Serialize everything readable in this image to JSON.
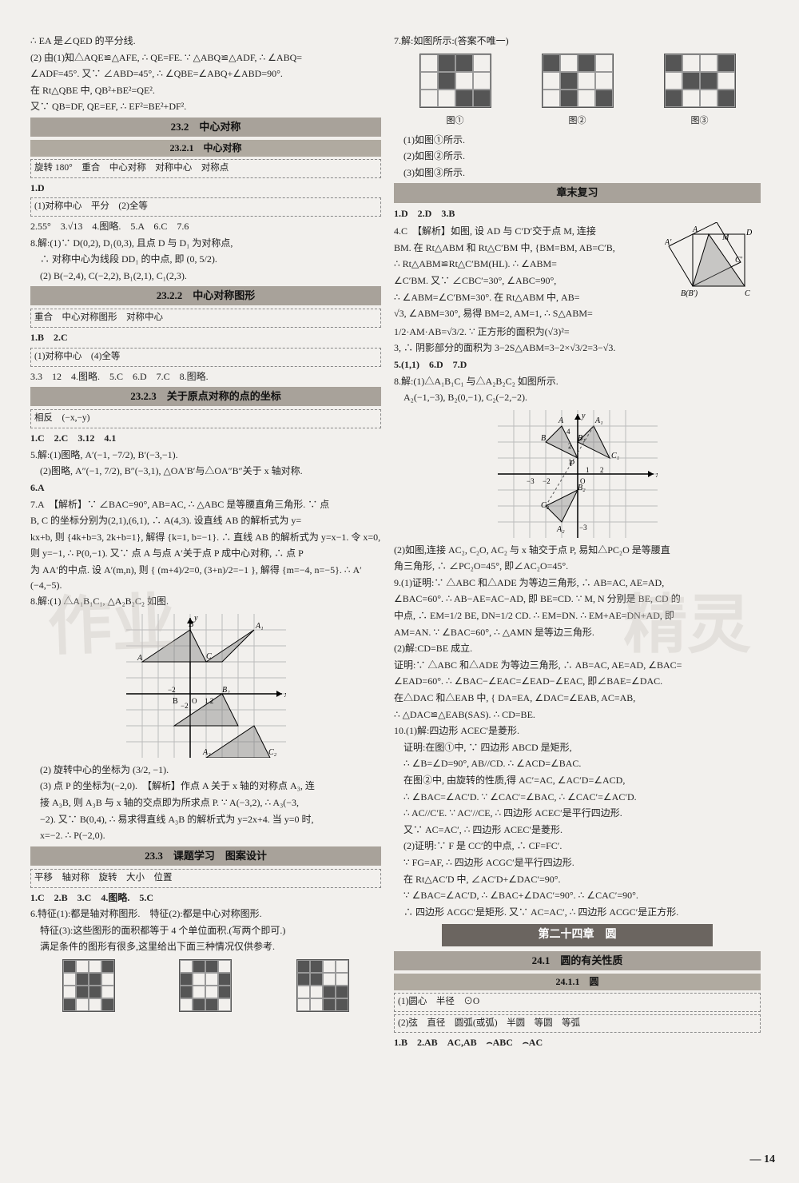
{
  "left": {
    "intro_lines": [
      "∴ EA 是∠QED 的平分线.",
      "(2) 由(1)知△AQE≌△AFE, ∴ QE=FE. ∵ △ABQ≌△ADF, ∴ ∠ABQ=",
      "∠ADF=45°. 又∵ ∠ABD=45°, ∴ ∠QBE=∠ABQ+∠ABD=90°.",
      "在 Rt△QBE 中, QB²+BE²=QE².",
      "又∵ QB=DF, QE=EF, ∴ EF²=BE²+DF²."
    ],
    "h_23_2": "23.2　中心对称",
    "h_23_2_1": "23.2.1　中心对称",
    "dashed_23_2_1": "旋转 180°　重合　中心对称　对称中心　对称点",
    "ans1": "1.D",
    "dashed_ans1": "(1)对称中心　平分　(2)全等",
    "line_2": "2.55°　3.√13　4.图略.　5.A　6.C　7.6",
    "line_8_1": "8.解:(1)∵ D(0,2), D₁(0,3), 且点 D 与 D₁ 为对称点,",
    "line_8_2": "∴ 对称中心为线段 DD₁ 的中点, 即 (0, 5/2).",
    "line_8_3": "(2) B(−2,4), C(−2,2), B₁(2,1), C₁(2,3).",
    "h_23_2_2": "23.2.2　中心对称图形",
    "dashed_23_2_2": "重合　中心对称图形　对称中心",
    "ans2": "1.B　2.C",
    "dashed_ans2": "(1)对称中心　(4)全等",
    "line_3": "3.3　12　4.图略.　5.C　6.D　7.C　8.图略.",
    "h_23_2_3": "23.2.3　关于原点对称的点的坐标",
    "dashed_23_2_3": "相反　(−x,−y)",
    "ans3": "1.C　2.C　3.12　4.1",
    "line_5_1": "5.解:(1)图略, A′(−1, −7/2), B′(−3,−1).",
    "line_5_2": "(2)图略, A″(−1, 7/2), B″(−3,1), △OA′B′与△OA″B″关于 x 轴对称.",
    "ans6": "6.A",
    "p7_lines": [
      "7.A　【解析】∵ ∠BAC=90°, AB=AC, ∴ △ABC 是等腰直角三角形. ∵ 点",
      "B, C 的坐标分别为(2,1),(6,1), ∴ A(4,3). 设直线 AB 的解析式为 y=",
      "kx+b, 则 {4k+b=3, 2k+b=1}, 解得 {k=1, b=−1}. ∴ 直线 AB 的解析式为 y=x−1. 令 x=0,",
      "则 y=−1, ∴ P(0,−1). 又∵ 点 A 与点 A′关于点 P 成中心对称, ∴ 点 P",
      "为 AA′的中点. 设 A′(m,n), 则 { (m+4)/2=0, (3+n)/2=−1 }, 解得 {m=−4, n=−5}. ∴ A′(−4,−5)."
    ],
    "p8_1": "8.解:(1) △A₁B₁C₁, △A₂B₂C₂ 如图.",
    "p8_2": "(2) 旋转中心的坐标为 (3/2, −1).",
    "p8_3_lines": [
      "(3) 点 P 的坐标为(−2,0).　【解析】作点 A 关于 x 轴的对称点 A₃, 连",
      "接 A₃B, 则 A₃B 与 x 轴的交点即为所求点 P. ∵ A(−3,2), ∴ A₃(−3,",
      "−2). 又∵ B(0,4), ∴ 易求得直线 A₃B 的解析式为 y=2x+4. 当 y=0 时,",
      "x=−2. ∴ P(−2,0)."
    ],
    "h_23_3": "23.3　课题学习　图案设计",
    "dashed_23_3": "平移　轴对称　旋转　大小　位置",
    "ans_23_3": "1.C　2.B　3.C　4.图略.　5.C",
    "p6_lines": [
      "6.特征(1):都是轴对称图形.　特征(2):都是中心对称图形.",
      "　特征(3):这些图形的面积都等于 4 个单位面积.(写两个即可.)",
      "　满足条件的图形有很多,这里给出下面三种情况仅供参考."
    ]
  },
  "right": {
    "p7_title": "7.解:如图所示:(答案不唯一)",
    "fig_labels": [
      "图①",
      "图②",
      "图③"
    ],
    "p7_sub": [
      "(1)如图①所示.",
      "(2)如图②所示.",
      "(3)如图③所示."
    ],
    "h_review": "章末复习",
    "rev1": "1.D　2.D　3.B",
    "p4_lines": [
      "4.C　【解析】如图, 设 AD 与 C′D′交于点 M, 连接",
      "BM. 在 Rt△ABM 和 Rt△C′BM 中, {BM=BM, AB=C′B,",
      "∴ Rt△ABM≌Rt△C′BM(HL). ∴ ∠ABM=",
      "∠C′BM. 又∵ ∠CBC′=30°, ∠ABC=90°,",
      "∴ ∠ABM=∠C′BM=30°. 在 Rt△ABM 中, AB=",
      "√3, ∠ABM=30°, 易得 BM=2, AM=1, ∴ S△ABM=",
      "1/2·AM·AB=√3/2. ∵ 正方形的面积为(√3)²=",
      "3, ∴ 阴影部分的面积为 3−2S△ABM=3−2×√3/2=3−√3."
    ],
    "rev5": "5.(1,1)　6.D　7.D",
    "p8r_1": "8.解:(1)△A₁B₁C₁ 与△A₂B₂C₂ 如图所示.",
    "p8r_2": "A₂(−1,−3), B₂(0,−1), C₂(−2,−2).",
    "p8r_3_lines": [
      "(2)如图,连接 AC₂, C₂O, AC₂ 与 x 轴交于点 P, 易知△PC₂O 是等腰直",
      "角三角形, ∴ ∠PC₂O=45°, 即∠AC₂O=45°."
    ],
    "p9_lines": [
      "9.(1)证明:∵ △ABC 和△ADE 为等边三角形, ∴ AB=AC, AE=AD,",
      "∠BAC=60°. ∴ AB−AE=AC−AD, 即 BE=CD. ∵ M, N 分别是 BE, CD 的",
      "中点, ∴ EM=1/2 BE, DN=1/2 CD. ∴ EM=DN. ∴ EM+AE=DN+AD, 即",
      "AM=AN. ∵ ∠BAC=60°, ∴ △AMN 是等边三角形.",
      "(2)解:CD=BE 成立.",
      "证明:∵ △ABC 和△ADE 为等边三角形, ∴ AB=AC, AE=AD, ∠BAC=",
      "∠EAD=60°. ∴ ∠BAC−∠EAC=∠EAD−∠EAC, 即∠BAE=∠DAC.",
      "在△DAC 和△EAB 中, { DA=EA, ∠DAC=∠EAB, AC=AB,",
      "∴ △DAC≌△EAB(SAS). ∴ CD=BE."
    ],
    "p10_lines": [
      "10.(1)解:四边形 ACEC′是菱形.",
      "证明:在图①中, ∵ 四边形 ABCD 是矩形,",
      "∴ ∠B=∠D=90°, AB//CD. ∴ ∠ACD=∠BAC.",
      "在图②中, 由旋转的性质,得 AC′=AC, ∠AC′D=∠ACD,",
      "∴ ∠BAC=∠AC′D. ∵ ∠CAC′=∠BAC, ∴ ∠CAC′=∠AC′D.",
      "∴ AC//C′E. ∵ AC′//CE, ∴ 四边形 ACEC′是平行四边形.",
      "又∵ AC=AC′, ∴ 四边形 ACEC′是菱形.",
      "(2)证明:∵ F 是 CC′的中点, ∴ CF=FC′.",
      "∵ FG=AF, ∴ 四边形 ACGC′是平行四边形.",
      "在 Rt△AC′D 中, ∠AC′D+∠DAC′=90°.",
      "∵ ∠BAC=∠AC′D, ∴ ∠BAC+∠DAC′=90°. ∴ ∠CAC′=90°.",
      "∴ 四边形 ACGC′是矩形. 又∵ AC=AC′, ∴ 四边形 ACGC′是正方形."
    ],
    "chapter": "第二十四章　圆",
    "h_24_1": "24.1　圆的有关性质",
    "h_24_1_1": "24.1.1　圆",
    "dashed_24_1": "(1)圆心　半径　⊙O",
    "dashed_24_2": "(2)弦　直径　圆弧(或弧)　半圆　等圆　等弧",
    "ans24": "1.B　2.AB　AC,AB　⌢ABC　⌢AC"
  },
  "page_number": "— 14",
  "grids": {
    "top_right": [
      {
        "cols": 4,
        "rows": 3,
        "fill": [
          [
            0,
            1
          ],
          [
            0,
            2
          ],
          [
            1,
            1
          ],
          [
            2,
            2
          ],
          [
            2,
            3
          ]
        ]
      },
      {
        "cols": 4,
        "rows": 3,
        "fill": [
          [
            0,
            0
          ],
          [
            0,
            2
          ],
          [
            1,
            1
          ],
          [
            2,
            1
          ],
          [
            2,
            3
          ]
        ]
      },
      {
        "cols": 4,
        "rows": 3,
        "fill": [
          [
            0,
            0
          ],
          [
            0,
            3
          ],
          [
            1,
            1
          ],
          [
            1,
            2
          ],
          [
            2,
            0
          ],
          [
            2,
            3
          ]
        ]
      }
    ],
    "bottom_left": [
      {
        "cols": 4,
        "rows": 4,
        "fill": [
          [
            0,
            0
          ],
          [
            0,
            3
          ],
          [
            1,
            1
          ],
          [
            1,
            2
          ],
          [
            2,
            1
          ],
          [
            2,
            2
          ],
          [
            3,
            0
          ],
          [
            3,
            3
          ]
        ]
      },
      {
        "cols": 4,
        "rows": 4,
        "fill": [
          [
            0,
            1
          ],
          [
            0,
            2
          ],
          [
            1,
            0
          ],
          [
            1,
            3
          ],
          [
            2,
            0
          ],
          [
            2,
            3
          ],
          [
            3,
            1
          ],
          [
            3,
            2
          ]
        ]
      },
      {
        "cols": 4,
        "rows": 4,
        "fill": [
          [
            0,
            0
          ],
          [
            0,
            1
          ],
          [
            1,
            0
          ],
          [
            1,
            1
          ],
          [
            2,
            2
          ],
          [
            2,
            3
          ],
          [
            3,
            2
          ],
          [
            3,
            3
          ]
        ]
      }
    ]
  }
}
